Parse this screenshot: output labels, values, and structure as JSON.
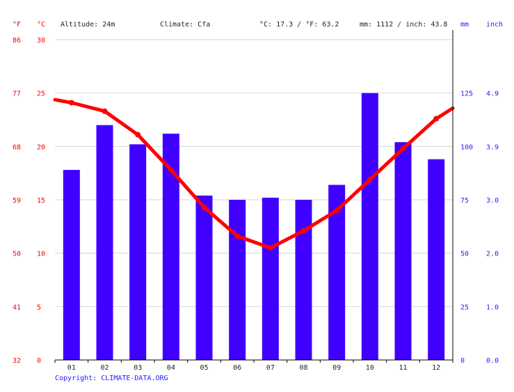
{
  "header": {
    "unit_f": "°F",
    "unit_c": "°C",
    "altitude": "Altitude: 24m",
    "climate": "Climate: Cfa",
    "temp_summary": "°C: 17.3 / °F: 63.2",
    "precip_summary": "mm: 1112 / inch: 43.8",
    "unit_mm": "mm",
    "unit_inch": "inch"
  },
  "copyright": "Copyright: CLIMATE-DATA.ORG",
  "colors": {
    "temperature": "#ff0000",
    "precipitation": "#4000ff",
    "axis_left": "#ff0000",
    "axis_right": "#2222ff",
    "grid": "#d4d4d4"
  },
  "chart_data": {
    "type": "bar",
    "categories": [
      "01",
      "02",
      "03",
      "04",
      "05",
      "06",
      "07",
      "08",
      "09",
      "10",
      "11",
      "12"
    ],
    "series": [
      {
        "type": "bar",
        "unit": "mm",
        "axis": "right",
        "values": [
          89,
          110,
          101,
          106,
          77,
          75,
          76,
          75,
          82,
          125,
          102,
          94
        ]
      },
      {
        "type": "line",
        "unit": "°C",
        "axis": "left",
        "values": [
          24.1,
          23.3,
          21.1,
          17.8,
          14.3,
          11.6,
          10.5,
          12.1,
          14.0,
          16.9,
          19.8,
          22.6
        ]
      }
    ],
    "y_left_celsius": {
      "ticks": [
        0,
        5,
        10,
        15,
        20,
        25,
        30
      ],
      "range": [
        0,
        30
      ]
    },
    "y_left_fahrenheit": {
      "ticks": [
        32,
        41,
        50,
        59,
        68,
        77,
        86
      ]
    },
    "y_right_mm": {
      "ticks": [
        0,
        25,
        50,
        75,
        100,
        125
      ],
      "range": [
        0,
        150
      ]
    },
    "y_right_inch": {
      "ticks": [
        "0.0",
        "1.0",
        "2.0",
        "3.0",
        "3.9",
        "4.9"
      ]
    },
    "grid": true
  }
}
